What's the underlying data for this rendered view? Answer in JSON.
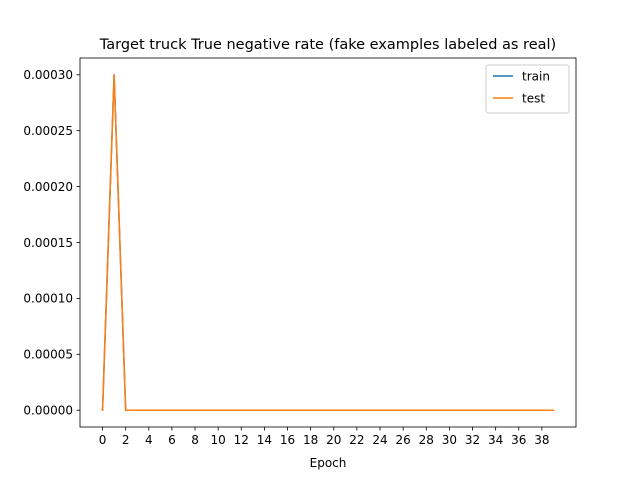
{
  "chart_data": {
    "type": "line",
    "title": "Target truck True negative rate (fake examples labeled as real)",
    "xlabel": "Epoch",
    "ylabel": "",
    "x": [
      0,
      1,
      2,
      3,
      4,
      5,
      6,
      7,
      8,
      9,
      10,
      11,
      12,
      13,
      14,
      15,
      16,
      17,
      18,
      19,
      20,
      21,
      22,
      23,
      24,
      25,
      26,
      27,
      28,
      29,
      30,
      31,
      32,
      33,
      34,
      35,
      36,
      37,
      38,
      39
    ],
    "xlim": [
      -1.95,
      40.95
    ],
    "ylim": [
      -1.5e-05,
      0.000315
    ],
    "xticks": [
      0,
      2,
      4,
      6,
      8,
      10,
      12,
      14,
      16,
      18,
      20,
      22,
      24,
      26,
      28,
      30,
      32,
      34,
      36,
      38
    ],
    "xtick_labels": [
      "0",
      "2",
      "4",
      "6",
      "8",
      "10",
      "12",
      "14",
      "16",
      "18",
      "20",
      "22",
      "24",
      "26",
      "28",
      "30",
      "32",
      "34",
      "36",
      "38"
    ],
    "yticks": [
      0,
      5e-05,
      0.0001,
      0.00015,
      0.0002,
      0.00025,
      0.0003
    ],
    "ytick_labels": [
      "0.00000",
      "0.00005",
      "0.00010",
      "0.00015",
      "0.00020",
      "0.00025",
      "0.00030"
    ],
    "grid": false,
    "legend_position": "upper-right",
    "series": [
      {
        "name": "train",
        "color": "#1f77b4",
        "values": [
          0,
          0.0003,
          0,
          0,
          0,
          0,
          0,
          0,
          0,
          0,
          0,
          0,
          0,
          0,
          0,
          0,
          0,
          0,
          0,
          0,
          0,
          0,
          0,
          0,
          0,
          0,
          0,
          0,
          0,
          0,
          0,
          0,
          0,
          0,
          0,
          0,
          0,
          0,
          0,
          0
        ]
      },
      {
        "name": "test",
        "color": "#ff7f0e",
        "values": [
          0,
          0.0003,
          0,
          0,
          0,
          0,
          0,
          0,
          0,
          0,
          0,
          0,
          0,
          0,
          0,
          0,
          0,
          0,
          0,
          0,
          0,
          0,
          0,
          0,
          0,
          0,
          0,
          0,
          0,
          0,
          0,
          0,
          0,
          0,
          0,
          0,
          0,
          0,
          0,
          0
        ]
      }
    ]
  }
}
